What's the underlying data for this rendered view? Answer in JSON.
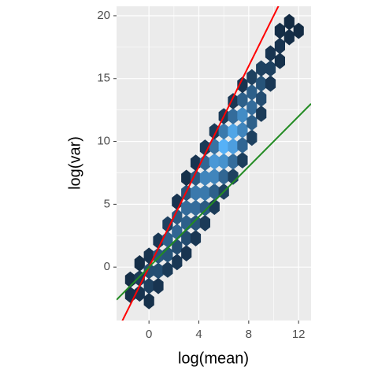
{
  "chart_data": {
    "type": "hexbin",
    "x_label": "log(mean)",
    "y_label": "log(var)",
    "xlim": [
      -2.6,
      13
    ],
    "ylim": [
      -4.25,
      20.75
    ],
    "xticks": [
      0,
      4,
      8,
      12
    ],
    "yticks": [
      0,
      5,
      10,
      15,
      20
    ],
    "grid": true,
    "color_low": "#132b43",
    "color_high": "#56b1f7",
    "hexes": [
      [
        -1.5,
        -2.2,
        3
      ],
      [
        -1.5,
        -1.0,
        2
      ],
      [
        -0.75,
        -2.1,
        4
      ],
      [
        -0.75,
        -0.9,
        6
      ],
      [
        -0.75,
        0.3,
        2
      ],
      [
        0,
        -2.7,
        3
      ],
      [
        0,
        -1.5,
        8
      ],
      [
        0,
        -0.3,
        12
      ],
      [
        0,
        0.9,
        4
      ],
      [
        0.75,
        -1.5,
        4
      ],
      [
        0.75,
        -0.3,
        12
      ],
      [
        0.75,
        0.9,
        15
      ],
      [
        0.75,
        2.1,
        5
      ],
      [
        1.5,
        -0.2,
        6
      ],
      [
        1.5,
        1.0,
        14
      ],
      [
        1.5,
        2.2,
        18
      ],
      [
        1.5,
        3.4,
        8
      ],
      [
        2.25,
        0.4,
        5
      ],
      [
        2.25,
        1.6,
        12
      ],
      [
        2.25,
        2.8,
        20
      ],
      [
        2.25,
        4.0,
        16
      ],
      [
        2.25,
        5.2,
        4
      ],
      [
        3,
        1.1,
        4
      ],
      [
        3,
        2.3,
        12
      ],
      [
        3,
        3.5,
        18
      ],
      [
        3,
        4.7,
        22
      ],
      [
        3,
        5.9,
        14
      ],
      [
        3,
        7.1,
        3
      ],
      [
        3.75,
        2.3,
        5
      ],
      [
        3.75,
        3.5,
        14
      ],
      [
        3.75,
        4.7,
        22
      ],
      [
        3.75,
        5.9,
        26
      ],
      [
        3.75,
        7.1,
        16
      ],
      [
        3.75,
        8.3,
        4
      ],
      [
        4.5,
        3.5,
        6
      ],
      [
        4.5,
        4.7,
        16
      ],
      [
        4.5,
        5.9,
        26
      ],
      [
        4.5,
        7.1,
        30
      ],
      [
        4.5,
        8.3,
        20
      ],
      [
        4.5,
        9.5,
        6
      ],
      [
        5.25,
        4.8,
        6
      ],
      [
        5.25,
        6.0,
        18
      ],
      [
        5.25,
        7.2,
        30
      ],
      [
        5.25,
        8.4,
        36
      ],
      [
        5.25,
        9.6,
        24
      ],
      [
        5.25,
        10.8,
        6
      ],
      [
        6,
        6.0,
        8
      ],
      [
        6,
        7.2,
        20
      ],
      [
        6,
        8.4,
        34
      ],
      [
        6,
        9.6,
        44
      ],
      [
        6,
        10.8,
        26
      ],
      [
        6,
        12.0,
        6
      ],
      [
        6.75,
        7.2,
        8
      ],
      [
        6.75,
        8.4,
        22
      ],
      [
        6.75,
        9.6,
        38
      ],
      [
        6.75,
        10.8,
        40
      ],
      [
        6.75,
        12.0,
        22
      ],
      [
        6.75,
        13.2,
        5
      ],
      [
        7.5,
        8.5,
        7
      ],
      [
        7.5,
        9.7,
        20
      ],
      [
        7.5,
        10.9,
        30
      ],
      [
        7.5,
        12.1,
        32
      ],
      [
        7.5,
        13.3,
        18
      ],
      [
        7.5,
        14.5,
        4
      ],
      [
        8.25,
        10.3,
        8
      ],
      [
        8.25,
        11.5,
        18
      ],
      [
        8.25,
        12.7,
        22
      ],
      [
        8.25,
        13.9,
        18
      ],
      [
        8.25,
        15.1,
        8
      ],
      [
        9,
        12.2,
        6
      ],
      [
        9,
        13.4,
        12
      ],
      [
        9,
        14.6,
        14
      ],
      [
        9,
        15.8,
        8
      ],
      [
        9.75,
        14.6,
        5
      ],
      [
        9.75,
        15.8,
        8
      ],
      [
        9.75,
        17.0,
        4
      ],
      [
        10.5,
        16.4,
        3
      ],
      [
        10.5,
        17.6,
        4
      ],
      [
        10.5,
        18.8,
        2
      ],
      [
        11.25,
        18.3,
        2
      ],
      [
        11.25,
        19.5,
        1
      ],
      [
        12,
        18.8,
        1
      ]
    ],
    "ablines": [
      {
        "slope": 2,
        "intercept": 0,
        "color": "#ff0000"
      },
      {
        "slope": 1,
        "intercept": 0,
        "color": "#228b22"
      }
    ]
  }
}
